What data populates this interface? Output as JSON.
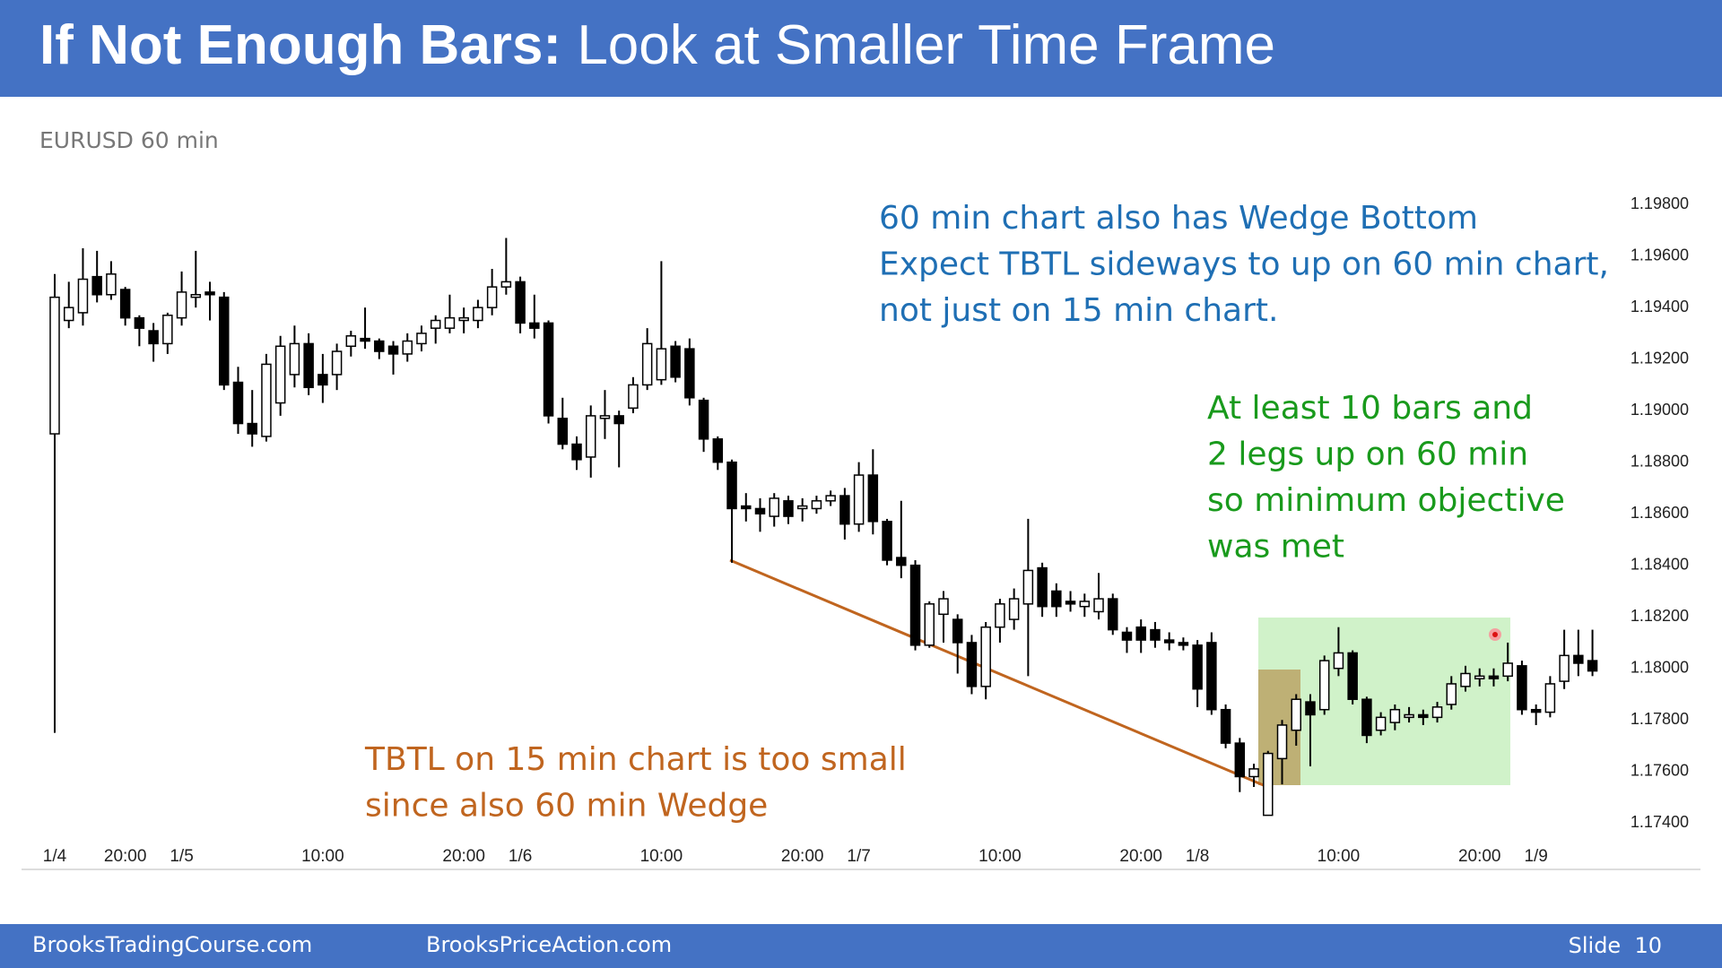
{
  "slide": {
    "title_bold": "If Not Enough Bars:",
    "title_rest": "Look at Smaller Time Frame",
    "footer_left": "BrooksTradingCourse.com",
    "footer_center": "BrooksPriceAction.com",
    "footer_right": "Slide  10"
  },
  "chart_data": {
    "type": "candlestick",
    "title": "EURUSD 60 min",
    "categories": [
      "1/4",
      null,
      null,
      null,
      null,
      "20:00",
      null,
      null,
      null,
      "1/5",
      null,
      null,
      null,
      null,
      null,
      null,
      null,
      null,
      null,
      "10:00",
      null,
      null,
      null,
      null,
      null,
      null,
      null,
      null,
      null,
      "20:00",
      null,
      null,
      null,
      "1/6",
      null,
      null,
      null,
      null,
      null,
      null,
      null,
      null,
      null,
      "10:00",
      null,
      null,
      null,
      null,
      null,
      null,
      null,
      null,
      null,
      "20:00",
      null,
      null,
      null,
      "1/7",
      null,
      null,
      null,
      null,
      null,
      null,
      null,
      null,
      null,
      "10:00",
      null,
      null,
      null,
      null,
      null,
      null,
      null,
      null,
      null,
      "20:00",
      null,
      null,
      null,
      "1/8",
      null,
      null,
      null,
      null,
      null,
      null,
      null,
      null,
      null,
      "10:00",
      null,
      null,
      null,
      null,
      null,
      null,
      null,
      null,
      null,
      "20:00",
      null,
      null,
      null,
      "1/9",
      null,
      null,
      null,
      null
    ],
    "open": [
      1.1891,
      1.1935,
      1.1938,
      1.1952,
      1.1945,
      1.1947,
      1.1936,
      1.1931,
      1.1926,
      1.1936,
      1.1944,
      1.1946,
      1.1944,
      1.1911,
      1.1895,
      1.189,
      1.1903,
      1.1914,
      1.1926,
      1.1914,
      1.1914,
      1.1925,
      1.1928,
      1.1927,
      1.1925,
      1.1922,
      1.1926,
      1.1932,
      1.1932,
      1.1935,
      1.1935,
      1.194,
      1.1948,
      1.195,
      1.1934,
      1.1934,
      1.1897,
      1.1887,
      1.1882,
      1.1897,
      1.1898,
      1.1901,
      1.191,
      1.1912,
      1.1925,
      1.1924,
      1.1904,
      1.1889,
      1.188,
      1.1863,
      1.1862,
      1.1859,
      1.1865,
      1.1862,
      1.1862,
      1.1865,
      1.1867,
      1.1856,
      1.1875,
      1.1857,
      1.1843,
      1.184,
      1.1809,
      1.1821,
      1.1819,
      1.181,
      1.1793,
      1.1816,
      1.1819,
      1.1825,
      1.1839,
      1.183,
      1.1826,
      1.1824,
      1.1822,
      1.1827,
      1.1814,
      1.1816,
      1.1815,
      1.1811,
      1.181,
      1.1809,
      1.181,
      1.1784,
      1.1771,
      1.1758,
      1.1743,
      1.1765,
      1.1776,
      1.1787,
      1.1784,
      1.18,
      1.1806,
      1.1788,
      1.1776,
      1.1779,
      1.1781,
      1.1782,
      1.1781,
      1.1786,
      1.1793,
      1.1796,
      1.1797,
      1.1797,
      1.1801,
      1.1784,
      1.1783,
      1.1795,
      1.1805,
      1.1803
    ],
    "high": [
      1.1953,
      1.195,
      1.1963,
      1.1962,
      1.1958,
      1.1948,
      1.1937,
      1.1934,
      1.1938,
      1.1954,
      1.1962,
      1.195,
      1.1946,
      1.1917,
      1.1908,
      1.1922,
      1.1929,
      1.1933,
      1.193,
      1.1922,
      1.1926,
      1.1931,
      1.194,
      1.1928,
      1.1927,
      1.193,
      1.1933,
      1.1937,
      1.1945,
      1.194,
      1.1943,
      1.1955,
      1.1967,
      1.1952,
      1.1945,
      1.1935,
      1.1905,
      1.189,
      1.1902,
      1.1908,
      1.19,
      1.1913,
      1.1932,
      1.1958,
      1.1927,
      1.1928,
      1.1905,
      1.189,
      1.1881,
      1.1868,
      1.1866,
      1.1868,
      1.1867,
      1.1866,
      1.1867,
      1.1869,
      1.187,
      1.188,
      1.1885,
      1.1858,
      1.1865,
      1.1842,
      1.1826,
      1.183,
      1.1821,
      1.1813,
      1.1818,
      1.1827,
      1.1831,
      1.1858,
      1.1841,
      1.1833,
      1.183,
      1.1829,
      1.1837,
      1.1829,
      1.1816,
      1.1819,
      1.1818,
      1.1814,
      1.1812,
      1.1811,
      1.1814,
      1.1786,
      1.1773,
      1.1763,
      1.1768,
      1.178,
      1.179,
      1.179,
      1.1805,
      1.1816,
      1.1807,
      1.1789,
      1.1783,
      1.1786,
      1.1785,
      1.1784,
      1.1787,
      1.1797,
      1.1801,
      1.18,
      1.18,
      1.181,
      1.1803,
      1.1786,
      1.1797,
      1.1815,
      1.1815,
      1.1815
    ],
    "low": [
      1.1775,
      1.1932,
      1.1933,
      1.1942,
      1.1943,
      1.1933,
      1.1925,
      1.1919,
      1.1922,
      1.1933,
      1.194,
      1.1935,
      1.1908,
      1.1891,
      1.1886,
      1.1888,
      1.1898,
      1.1909,
      1.1906,
      1.1903,
      1.1908,
      1.1921,
      1.1924,
      1.192,
      1.1914,
      1.1919,
      1.1923,
      1.1926,
      1.193,
      1.193,
      1.1932,
      1.1937,
      1.1945,
      1.193,
      1.1928,
      1.1895,
      1.1885,
      1.1877,
      1.1874,
      1.1889,
      1.1878,
      1.1899,
      1.1908,
      1.191,
      1.1911,
      1.1902,
      1.1884,
      1.1877,
      1.1841,
      1.1857,
      1.1853,
      1.1855,
      1.1856,
      1.1857,
      1.186,
      1.1863,
      1.185,
      1.1853,
      1.1852,
      1.184,
      1.1835,
      1.1807,
      1.1808,
      1.181,
      1.1798,
      1.179,
      1.1788,
      1.181,
      1.1815,
      1.1797,
      1.182,
      1.182,
      1.1822,
      1.182,
      1.1819,
      1.1813,
      1.1806,
      1.1806,
      1.1808,
      1.1807,
      1.1807,
      1.1785,
      1.1782,
      1.1769,
      1.1752,
      1.1754,
      1.1743,
      1.1755,
      1.177,
      1.1762,
      1.1782,
      1.1797,
      1.1786,
      1.1771,
      1.1774,
      1.1776,
      1.1779,
      1.1778,
      1.1779,
      1.1784,
      1.1791,
      1.1793,
      1.1793,
      1.1795,
      1.1782,
      1.1778,
      1.1781,
      1.1792,
      1.1797,
      1.1797
    ],
    "close": [
      1.1944,
      1.194,
      1.1951,
      1.1945,
      1.1953,
      1.1936,
      1.1932,
      1.1926,
      1.1937,
      1.1946,
      1.1945,
      1.1945,
      1.191,
      1.1895,
      1.1891,
      1.1918,
      1.1925,
      1.1926,
      1.1909,
      1.191,
      1.1923,
      1.1929,
      1.1927,
      1.1923,
      1.1922,
      1.1927,
      1.193,
      1.1935,
      1.1936,
      1.1936,
      1.194,
      1.1948,
      1.195,
      1.1934,
      1.1932,
      1.1898,
      1.1887,
      1.1881,
      1.1898,
      1.1898,
      1.1895,
      1.191,
      1.1926,
      1.1924,
      1.1913,
      1.1905,
      1.1889,
      1.188,
      1.1862,
      1.1862,
      1.186,
      1.1866,
      1.1859,
      1.1863,
      1.1865,
      1.1867,
      1.1856,
      1.1875,
      1.1857,
      1.1842,
      1.184,
      1.1809,
      1.1825,
      1.1827,
      1.181,
      1.1793,
      1.1816,
      1.1825,
      1.1827,
      1.1838,
      1.1824,
      1.1824,
      1.1825,
      1.1826,
      1.1827,
      1.1815,
      1.1811,
      1.1811,
      1.1811,
      1.181,
      1.1809,
      1.1792,
      1.1784,
      1.1771,
      1.1758,
      1.1761,
      1.1767,
      1.1778,
      1.1788,
      1.1782,
      1.1803,
      1.1806,
      1.1788,
      1.1774,
      1.1781,
      1.1784,
      1.1782,
      1.1781,
      1.1785,
      1.1794,
      1.1798,
      1.1797,
      1.1796,
      1.1802,
      1.1784,
      1.1783,
      1.1794,
      1.1805,
      1.1802,
      1.1799
    ],
    "up_color": "#ffffff",
    "down_color": "#000000",
    "ylim": [
      1.1722,
      1.1987
    ],
    "yticks": [
      {
        "value": 1.198,
        "label": "1.19800"
      },
      {
        "value": 1.196,
        "label": "1.19600"
      },
      {
        "value": 1.194,
        "label": "1.19400"
      },
      {
        "value": 1.192,
        "label": "1.19200"
      },
      {
        "value": 1.19,
        "label": "1.19000"
      },
      {
        "value": 1.188,
        "label": "1.18800"
      },
      {
        "value": 1.186,
        "label": "1.18600"
      },
      {
        "value": 1.184,
        "label": "1.18400"
      },
      {
        "value": 1.182,
        "label": "1.18200"
      },
      {
        "value": 1.18,
        "label": "1.18000"
      },
      {
        "value": 1.178,
        "label": "1.17800"
      },
      {
        "value": 1.176,
        "label": "1.17600"
      },
      {
        "value": 1.174,
        "label": "1.17400"
      }
    ],
    "grid": false,
    "annotations": {
      "blue": [
        "60 min chart also has Wedge Bottom",
        "Expect TBTL sideways to up on 60 min chart,",
        "not just on 15 min chart."
      ],
      "green": [
        "At least 10 bars and",
        "2 legs up on 60 min",
        "so minimum objective",
        "was met"
      ],
      "orange": [
        "TBTL on 15 min chart is too small",
        "since also 60 min Wedge"
      ]
    }
  }
}
